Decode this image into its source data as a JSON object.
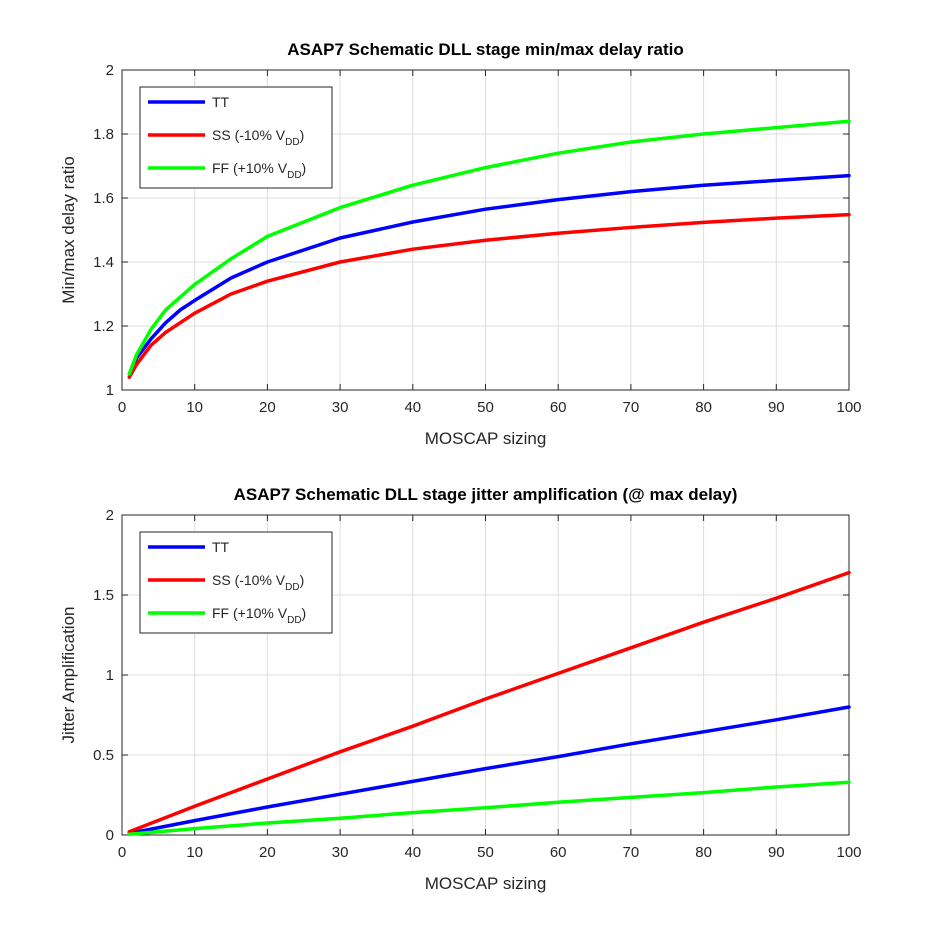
{
  "chart_data": [
    {
      "type": "line",
      "title": "ASAP7 Schematic DLL stage min/max delay ratio",
      "xlabel": "MOSCAP sizing",
      "ylabel": "Min/max delay ratio",
      "xlim": [
        0,
        100
      ],
      "ylim": [
        1,
        2
      ],
      "xticks": [
        "0",
        "10",
        "20",
        "30",
        "40",
        "50",
        "60",
        "70",
        "80",
        "90",
        "100"
      ],
      "yticks": [
        "1",
        "1.2",
        "1.4",
        "1.6",
        "1.8",
        "2"
      ],
      "grid": true,
      "legend_position": "top-left",
      "x": [
        1,
        2,
        4,
        6,
        8,
        10,
        15,
        20,
        30,
        40,
        50,
        60,
        70,
        80,
        90,
        100
      ],
      "series": [
        {
          "name": "TT",
          "sub": "",
          "suffix": "",
          "color": "#0000ff",
          "values": [
            1.05,
            1.1,
            1.16,
            1.21,
            1.25,
            1.28,
            1.35,
            1.4,
            1.475,
            1.525,
            1.565,
            1.595,
            1.62,
            1.64,
            1.655,
            1.67
          ]
        },
        {
          "name": "SS (-10% V",
          "sub": "DD",
          "suffix": ")",
          "color": "#ff0000",
          "values": [
            1.04,
            1.08,
            1.14,
            1.18,
            1.21,
            1.24,
            1.3,
            1.34,
            1.4,
            1.44,
            1.468,
            1.49,
            1.508,
            1.524,
            1.537,
            1.548
          ]
        },
        {
          "name": "FF (+10% V",
          "sub": "DD",
          "suffix": ")",
          "color": "#00ff00",
          "values": [
            1.05,
            1.11,
            1.19,
            1.25,
            1.29,
            1.33,
            1.41,
            1.48,
            1.57,
            1.64,
            1.695,
            1.74,
            1.775,
            1.8,
            1.82,
            1.84
          ]
        }
      ]
    },
    {
      "type": "line",
      "title": "ASAP7 Schematic DLL stage jitter amplification (@ max delay)",
      "xlabel": "MOSCAP sizing",
      "ylabel": "Jitter Amplification",
      "xlim": [
        0,
        100
      ],
      "ylim": [
        0,
        2
      ],
      "xticks": [
        "0",
        "10",
        "20",
        "30",
        "40",
        "50",
        "60",
        "70",
        "80",
        "90",
        "100"
      ],
      "yticks": [
        "0",
        "0.5",
        "1",
        "1.5",
        "2"
      ],
      "grid": true,
      "legend_position": "top-left",
      "x": [
        1,
        10,
        20,
        30,
        40,
        50,
        60,
        70,
        80,
        90,
        100
      ],
      "series": [
        {
          "name": "TT",
          "sub": "",
          "suffix": "",
          "color": "#0000ff",
          "values": [
            0.01,
            0.09,
            0.175,
            0.255,
            0.335,
            0.415,
            0.49,
            0.57,
            0.645,
            0.72,
            0.8
          ]
        },
        {
          "name": "SS (-10% V",
          "sub": "DD",
          "suffix": ")",
          "color": "#ff0000",
          "values": [
            0.02,
            0.18,
            0.35,
            0.52,
            0.68,
            0.85,
            1.01,
            1.17,
            1.33,
            1.48,
            1.64
          ]
        },
        {
          "name": "FF (+10% V",
          "sub": "DD",
          "suffix": ")",
          "color": "#00ff00",
          "values": [
            0.005,
            0.04,
            0.075,
            0.105,
            0.14,
            0.17,
            0.205,
            0.235,
            0.265,
            0.3,
            0.33
          ]
        }
      ]
    }
  ]
}
